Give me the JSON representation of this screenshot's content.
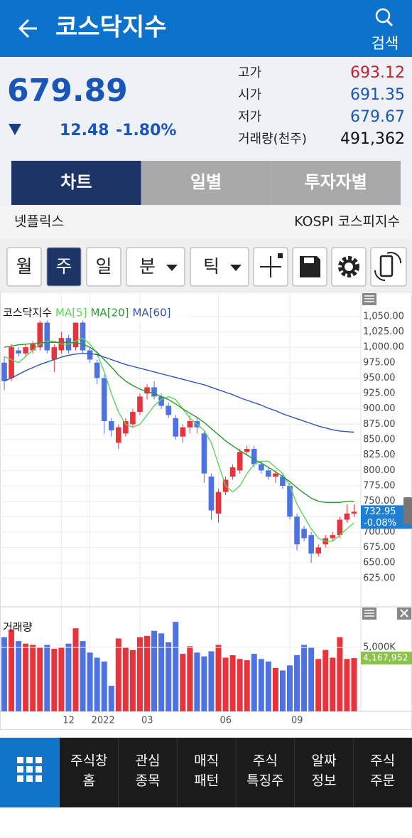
{
  "header": {
    "title": "코스닥지수",
    "search": "검색"
  },
  "quote": {
    "price": "679.89",
    "change": "12.48",
    "change_pct": "-1.80%",
    "stats": [
      {
        "label": "고가",
        "value": "693.12",
        "color": "#c8202c"
      },
      {
        "label": "시가",
        "value": "691.35",
        "color": "#1a56b8"
      },
      {
        "label": "저가",
        "value": "679.67",
        "color": "#1a56b8"
      },
      {
        "label": "거래량(천주)",
        "value": "491,362",
        "color": "#111111"
      }
    ]
  },
  "tabs": [
    {
      "label": "차트",
      "selected": true
    },
    {
      "label": "일별"
    },
    {
      "label": "투자자별"
    }
  ],
  "related": {
    "left": "넷플릭스",
    "right": "KOSPI 코스피지수"
  },
  "toolbar": [
    {
      "label": "월"
    },
    {
      "label": "주",
      "selected": true
    },
    {
      "label": "일"
    },
    {
      "label": "분",
      "dropdown": true
    },
    {
      "label": "틱",
      "dropdown": true
    }
  ],
  "chart_data": {
    "type": "candlestick",
    "title": "코스닥지수",
    "up_color": "#e8323c",
    "down_color": "#4d72e3",
    "categories": [
      null,
      null,
      null,
      null,
      null,
      null,
      null,
      null,
      "12",
      null,
      null,
      null,
      "2022",
      null,
      null,
      null,
      null,
      null,
      null,
      "03",
      null,
      null,
      null,
      null,
      null,
      null,
      null,
      null,
      null,
      null,
      "06",
      null,
      null,
      null,
      null,
      null,
      null,
      null,
      null,
      null,
      "09",
      null,
      null,
      null,
      null,
      null,
      null,
      null,
      null,
      null
    ],
    "open": [
      975,
      950,
      995,
      990,
      995,
      1000,
      1040,
      980,
      995,
      1015,
      1000,
      1040,
      995,
      975,
      950,
      880,
      845,
      860,
      875,
      895,
      925,
      935,
      920,
      905,
      885,
      855,
      870,
      880,
      860,
      790,
      730,
      765,
      790,
      800,
      830,
      835,
      810,
      800,
      790,
      790,
      775,
      725,
      705,
      695,
      665,
      680,
      690,
      695,
      720,
      730
    ],
    "high": [
      985,
      1005,
      1000,
      1005,
      1010,
      1045,
      1045,
      1005,
      1025,
      1020,
      1040,
      1045,
      1000,
      980,
      955,
      885,
      875,
      885,
      900,
      925,
      940,
      945,
      925,
      910,
      890,
      875,
      890,
      885,
      865,
      795,
      770,
      790,
      810,
      835,
      840,
      840,
      815,
      805,
      800,
      795,
      780,
      730,
      710,
      700,
      680,
      695,
      700,
      725,
      745,
      745
    ],
    "low": [
      930,
      945,
      985,
      985,
      990,
      995,
      990,
      960,
      990,
      990,
      995,
      990,
      975,
      940,
      860,
      855,
      835,
      855,
      870,
      890,
      915,
      915,
      900,
      885,
      850,
      845,
      860,
      860,
      780,
      720,
      715,
      760,
      785,
      795,
      825,
      805,
      795,
      785,
      780,
      770,
      720,
      670,
      685,
      650,
      660,
      675,
      685,
      690,
      715,
      725
    ],
    "close": [
      945,
      1000,
      990,
      1000,
      1005,
      1040,
      995,
      1000,
      1015,
      995,
      1040,
      995,
      980,
      950,
      880,
      865,
      870,
      880,
      895,
      920,
      935,
      920,
      905,
      890,
      855,
      870,
      880,
      870,
      795,
      735,
      765,
      785,
      805,
      830,
      835,
      810,
      800,
      790,
      795,
      775,
      725,
      680,
      690,
      665,
      675,
      690,
      695,
      720,
      730,
      732.95
    ],
    "ma": [
      {
        "name": "MA[5]",
        "color": "#5fd35f",
        "values": [
          985,
          980,
          975,
          985,
          995,
          1005,
          1010,
          1010,
          1005,
          1005,
          1010,
          1015,
          1005,
          990,
          960,
          925,
          895,
          875,
          870,
          875,
          890,
          905,
          915,
          920,
          915,
          900,
          885,
          875,
          865,
          845,
          810,
          775,
          765,
          775,
          795,
          810,
          815,
          815,
          805,
          795,
          775,
          745,
          725,
          705,
          690,
          685,
          685,
          695,
          705,
          715
        ]
      },
      {
        "name": "MA[20]",
        "color": "#2a9a2a",
        "values": [
          1000,
          1002,
          1004,
          1005,
          1006,
          1007,
          1008,
          1008,
          1008,
          1008,
          1007,
          1005,
          1000,
          992,
          980,
          968,
          955,
          945,
          938,
          932,
          928,
          925,
          920,
          915,
          908,
          900,
          893,
          886,
          878,
          868,
          858,
          848,
          840,
          832,
          825,
          818,
          812,
          805,
          798,
          790,
          782,
          772,
          763,
          755,
          750,
          748,
          748,
          748,
          750,
          750
        ]
      },
      {
        "name": "MA[60]",
        "color": "#2d55b0",
        "values": [
          945,
          950,
          956,
          962,
          967,
          972,
          976,
          980,
          984,
          987,
          989,
          990,
          990,
          988,
          984,
          980,
          976,
          972,
          969,
          966,
          963,
          960,
          957,
          954,
          951,
          948,
          945,
          942,
          939,
          935,
          931,
          927,
          923,
          918,
          914,
          910,
          906,
          901,
          897,
          892,
          888,
          884,
          880,
          876,
          872,
          869,
          866,
          864,
          863,
          862
        ]
      }
    ],
    "ylim": [
      582,
      1088
    ],
    "yticks": [
      {
        "value": 625,
        "label": "625.00"
      },
      {
        "value": 650,
        "label": "650.00"
      },
      {
        "value": 675,
        "label": "675.00"
      },
      {
        "value": 700,
        "label": "700.00"
      },
      {
        "value": 725,
        "label": "725.00"
      },
      {
        "value": 750,
        "label": "750.00"
      },
      {
        "value": 775,
        "label": "775.00"
      },
      {
        "value": 800,
        "label": "800.00"
      },
      {
        "value": 825,
        "label": "825.00"
      },
      {
        "value": 850,
        "label": "850.00"
      },
      {
        "value": 875,
        "label": "875.00"
      },
      {
        "value": 900,
        "label": "900.00"
      },
      {
        "value": 925,
        "label": "925.00"
      },
      {
        "value": 950,
        "label": "950.00"
      },
      {
        "value": 975,
        "label": "975.00"
      },
      {
        "value": 1000,
        "label": "1,000.00"
      },
      {
        "value": 1025,
        "label": "1,025.00"
      },
      {
        "value": 1050,
        "label": "1,050.00"
      }
    ],
    "last": {
      "value": 732.95,
      "label": "732.95",
      "change": "-0.08%"
    },
    "volume": {
      "name": "거래량",
      "values": [
        5800,
        6400,
        5500,
        5300,
        5200,
        5000,
        5200,
        4900,
        5000,
        5300,
        6500,
        5500,
        4600,
        4200,
        3900,
        2000,
        5700,
        5000,
        4800,
        5800,
        5900,
        6300,
        6100,
        5400,
        7000,
        4500,
        5100,
        4600,
        4300,
        4700,
        5200,
        4200,
        4400,
        4100,
        4000,
        4500,
        4100,
        3900,
        3400,
        3200,
        3600,
        4400,
        5200,
        5000,
        4100,
        4800,
        4200,
        5800,
        4100,
        4167.952
      ],
      "value_labels": [
        null,
        null,
        null,
        null,
        null,
        null,
        null,
        null,
        null,
        null,
        null,
        null,
        null,
        null,
        null,
        null,
        null,
        null,
        null,
        null,
        null,
        null,
        null,
        null,
        null,
        null,
        null,
        null,
        null,
        null,
        null,
        null,
        null,
        null,
        null,
        null,
        null,
        null,
        null,
        null,
        null,
        null,
        null,
        null,
        null,
        null,
        null,
        null,
        null,
        "4,167,952"
      ],
      "ylim": [
        0,
        7900
      ],
      "yticks": [
        {
          "value": 5000,
          "label": "5,000K"
        }
      ],
      "tag_color": "#8bc34a"
    },
    "grid": true
  },
  "nav": [
    [
      "주식창",
      "홈"
    ],
    [
      "관심",
      "종목"
    ],
    [
      "매직",
      "패턴"
    ],
    [
      "주식",
      "특징주"
    ],
    [
      "알짜",
      "정보"
    ],
    [
      "주식",
      "주문"
    ]
  ]
}
